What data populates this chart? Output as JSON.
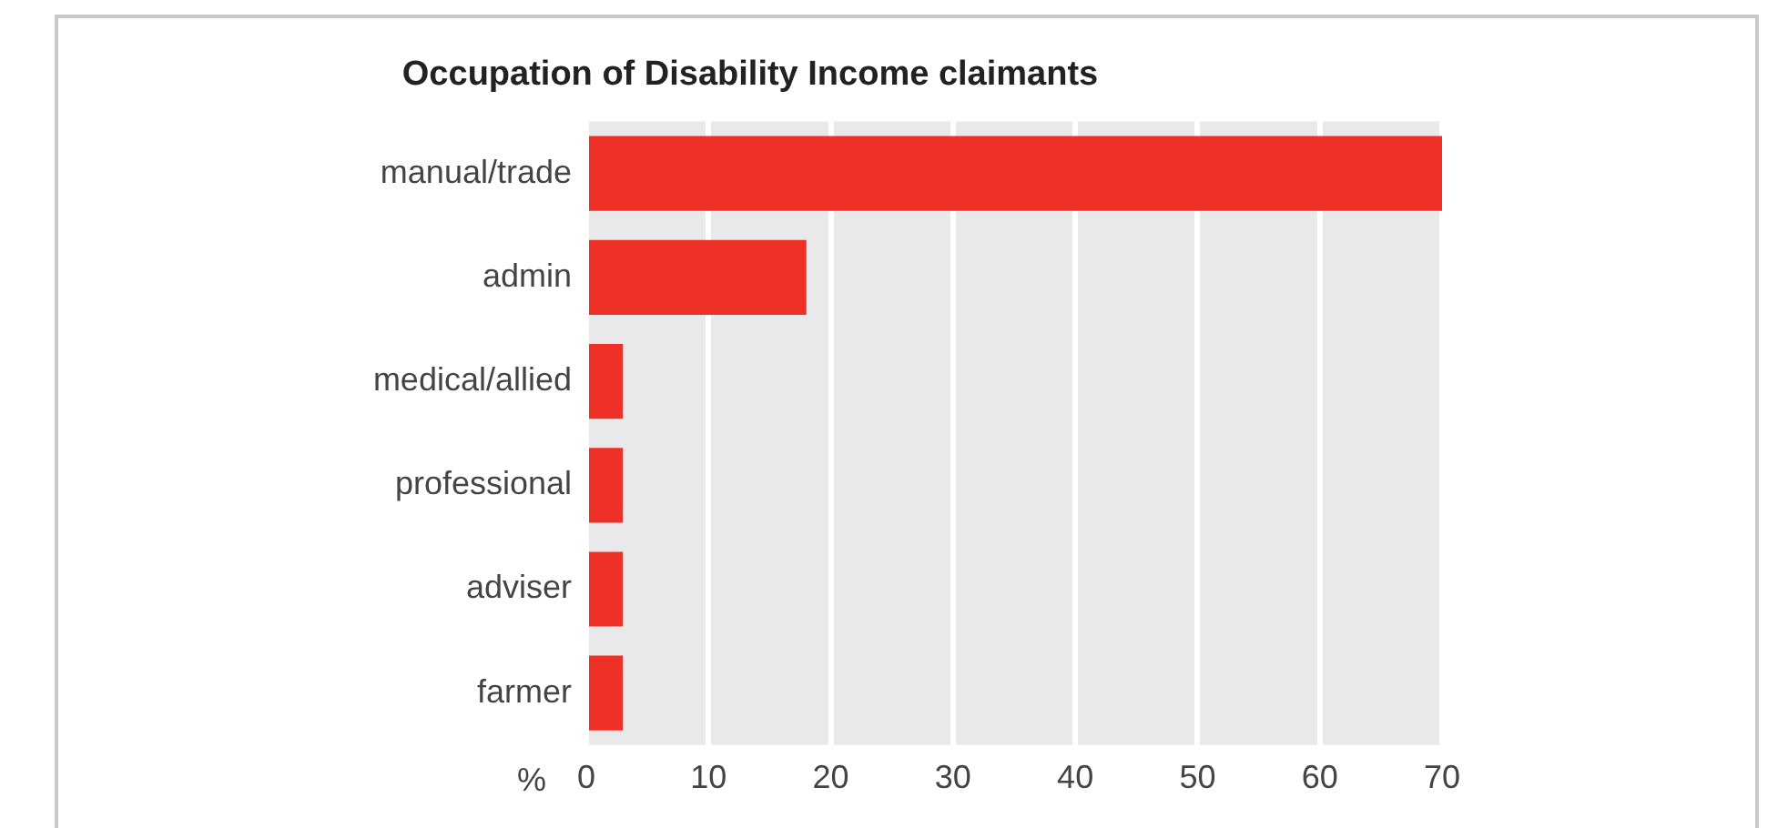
{
  "chart_data": {
    "type": "bar",
    "orientation": "horizontal",
    "title": "Occupation of Disability Income claimants",
    "xlabel": "%",
    "categories": [
      "manual/trade",
      "admin",
      "medical/allied",
      "professional",
      "adviser",
      "farmer"
    ],
    "values": [
      70,
      18,
      3,
      3,
      3,
      3
    ],
    "color": "#ee3026",
    "xlim": [
      0,
      70
    ],
    "xticks": [
      0,
      10,
      20,
      30,
      40,
      50,
      60,
      70
    ],
    "grid": "x",
    "legend": false
  }
}
